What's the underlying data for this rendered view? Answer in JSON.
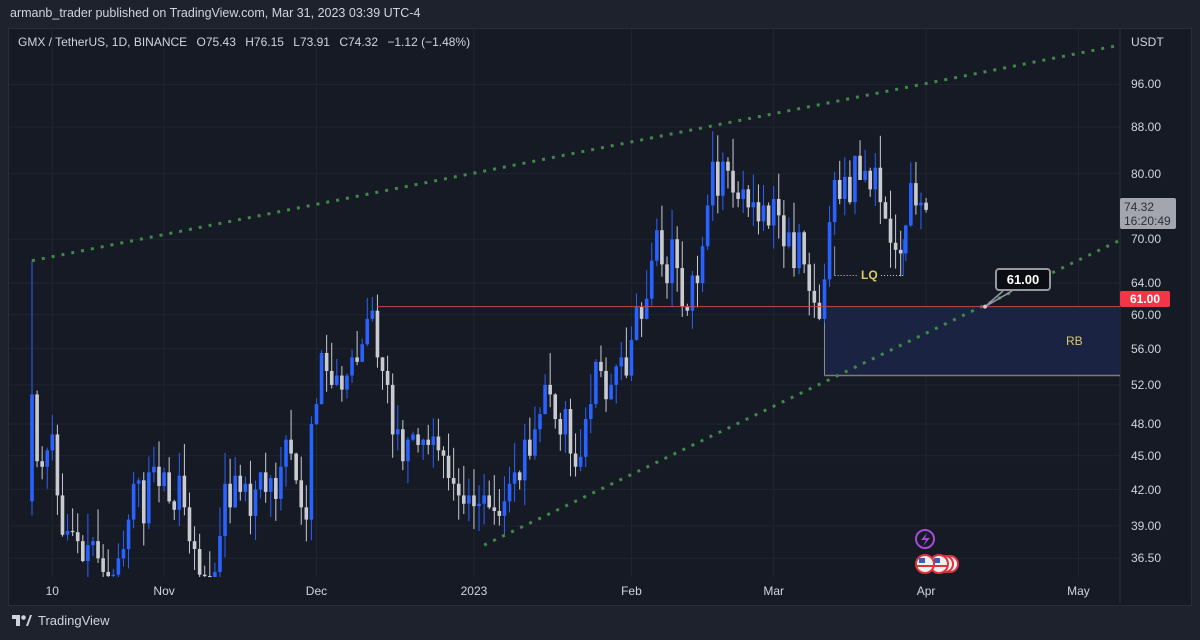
{
  "header": {
    "publish_text": "armanb_trader published on TradingView.com, Mar 31, 2023 03:39 UTC-4"
  },
  "legend": {
    "symbol": "GMX / TetherUS, 1D, BINANCE",
    "open": "O75.43",
    "high": "H76.15",
    "low": "L73.91",
    "close": "C74.32",
    "change": "−1.12 (−1.48%)"
  },
  "axis": {
    "currency": "USDT"
  },
  "labels": {
    "red_level": "61.00",
    "last_price": "74.32",
    "countdown": "16:20:49",
    "callout": "61.00",
    "rb": "RB",
    "lq": "LQ"
  },
  "footer": {
    "brand": "TradingView"
  },
  "colors": {
    "up": "#2962ff",
    "down": "#c9cbd1",
    "trend": "#3f8a46",
    "level": "#c2474f",
    "box": "#1b2646"
  },
  "chart_data": {
    "type": "candlestick",
    "title": "GMX / TetherUS, 1D, BINANCE",
    "y_scale": "log",
    "ylim": [
      34.5,
      104
    ],
    "y_ticks": [
      "96.00",
      "88.00",
      "80.00",
      "70.00",
      "64.00",
      "60.00",
      "56.00",
      "52.00",
      "48.00",
      "45.00",
      "42.00",
      "39.00",
      "36.50"
    ],
    "x_ticks": [
      {
        "label": "10",
        "day": 4
      },
      {
        "label": "Nov",
        "day": 26
      },
      {
        "label": "Dec",
        "day": 56
      },
      {
        "label": "2023",
        "day": 87
      },
      {
        "label": "Feb",
        "day": 118
      },
      {
        "label": "Mar",
        "day": 146
      },
      {
        "label": "Apr",
        "day": 176
      },
      {
        "label": "May",
        "day": 206
      }
    ],
    "first_open": 41.0,
    "first_high": 67.0,
    "last": {
      "open": 75.43,
      "high": 76.15,
      "low": 73.91,
      "close": 74.32
    },
    "closes": [
      51,
      44.5,
      44,
      45.5,
      47,
      41.5,
      38.3,
      38.6,
      38.5,
      37.8,
      36.3,
      37.5,
      37.8,
      36.5,
      35.5,
      35.2,
      35.3,
      36.5,
      37.2,
      39.5,
      42.5,
      42.8,
      39.2,
      43.5,
      44.0,
      42.3,
      43.5,
      41.0,
      40.3,
      43.2,
      40.5,
      37.8,
      37.2,
      35.3,
      35.2,
      35.0,
      35.5,
      38.2,
      42.5,
      40.5,
      43.2,
      41.8,
      42.5,
      39.8,
      42.0,
      43.5,
      41.8,
      43.0,
      41.2,
      44.0,
      46.5,
      45.2,
      42.8,
      40.5,
      39.5,
      48.0,
      50.0,
      55.5,
      53.5,
      52.0,
      53.0,
      51.5,
      53.0,
      55.0,
      54.5,
      56.5,
      59.5,
      60.5,
      55.0,
      53.5,
      52.0,
      47.0,
      47.5,
      44.5,
      46.5,
      47.0,
      46.0,
      46.5,
      46.0,
      46.8,
      45.5,
      45.0,
      43.0,
      42.5,
      41.5,
      40.8,
      41.5,
      40.6,
      40.8,
      41.5,
      40.5,
      40.2,
      39.8,
      41.0,
      42.5,
      43.5,
      42.8,
      46.5,
      45.0,
      47.5,
      49.0,
      52.0,
      51.0,
      48.5,
      47.0,
      49.5,
      45.2,
      44.0,
      44.9,
      48.5,
      50.0,
      54.5,
      53.5,
      50.5,
      52.0,
      54.0,
      55.0,
      53.0,
      57.0,
      61.0,
      59.5,
      62.0,
      67.0,
      71.3,
      66.5,
      64.0,
      70.0,
      66.0,
      61.0,
      60.5,
      65.0,
      64.0,
      69.0,
      75.0,
      82.0,
      76.5,
      82.0,
      80.5,
      77.0,
      76.0,
      77.5,
      74.7,
      75.5,
      72.6,
      75.0,
      72.0,
      76.0,
      73.5,
      69.0,
      71.0,
      66.0,
      71.0,
      66.5,
      63.0,
      61.5,
      59.5,
      64.5,
      72.5,
      79.0,
      76.0,
      79.5,
      75.5,
      83.0,
      79.0,
      80.5,
      77.5,
      81.0,
      75.5,
      73.0,
      69.5,
      68.5,
      68.0,
      72.0,
      78.5,
      75.0,
      75.43,
      74.32
    ],
    "drawings": {
      "upper_trendline": [
        {
          "day": 0,
          "price": 67.0
        },
        {
          "day": 214,
          "price": 104.0
        }
      ],
      "lower_trendline": [
        {
          "day": 89,
          "price": 37.5
        },
        {
          "day": 214,
          "price": 69.8
        }
      ],
      "horizontal_level": 61.0,
      "rb_box": {
        "from_day": 156,
        "top": 61.0,
        "bottom": 53.0
      },
      "lq_level": 65.0
    }
  }
}
